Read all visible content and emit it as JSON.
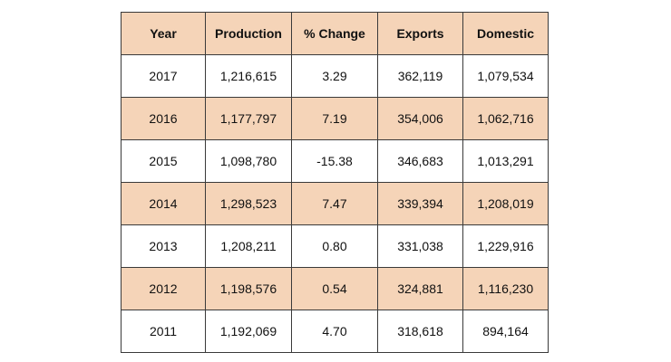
{
  "chart_data": {
    "type": "table",
    "columns": [
      "Year",
      "Production",
      "% Change",
      "Exports",
      "Domestic"
    ],
    "rows": [
      [
        "2017",
        "1,216,615",
        "3.29",
        "362,119",
        "1,079,534"
      ],
      [
        "2016",
        "1,177,797",
        "7.19",
        "354,006",
        "1,062,716"
      ],
      [
        "2015",
        "1,098,780",
        "-15.38",
        "346,683",
        "1,013,291"
      ],
      [
        "2014",
        "1,298,523",
        "7.47",
        "339,394",
        "1,208,019"
      ],
      [
        "2013",
        "1,208,211",
        "0.80",
        "331,038",
        "1,229,916"
      ],
      [
        "2012",
        "1,198,576",
        "0.54",
        "324,881",
        "1,116,230"
      ],
      [
        "2011",
        "1,192,069",
        "4.70",
        "318,618",
        "894,164"
      ]
    ],
    "header_color": "#f5d4b8",
    "alt_row_color": "#f5d4b8"
  }
}
